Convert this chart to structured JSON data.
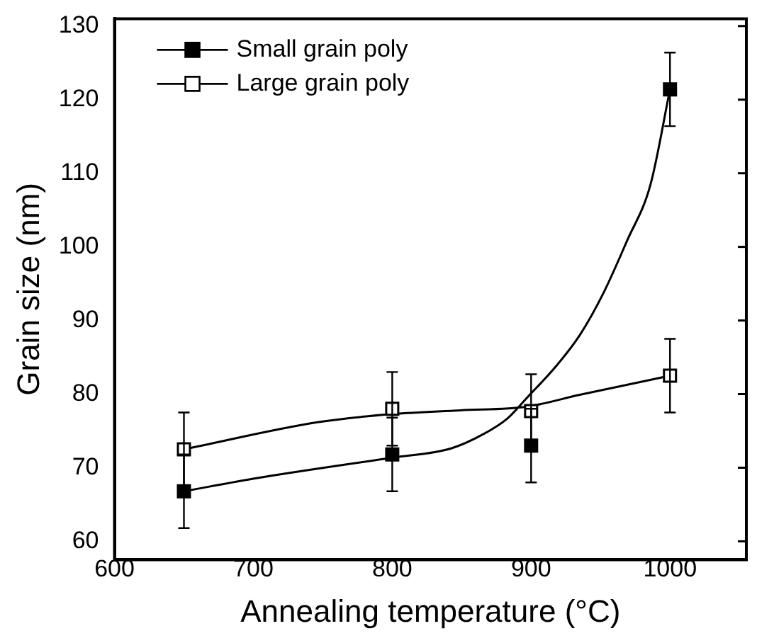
{
  "chart_data": {
    "type": "scatter",
    "xlabel": "Annealing temperature (°C)",
    "ylabel": "Grain size (nm)",
    "xlim": [
      600,
      1055
    ],
    "xticks": [
      600,
      700,
      800,
      900,
      1000
    ],
    "ylim": [
      57.5,
      131
    ],
    "yticks": [
      60,
      70,
      80,
      90,
      100,
      110,
      120,
      130
    ],
    "grid": false,
    "legend": "top left",
    "marker": "square",
    "series": [
      {
        "name": "Small grain poly",
        "color": "#000000",
        "x": [
          650,
          800,
          900,
          1000
        ],
        "values": [
          66.8,
          71.8,
          73.0,
          121.4
        ],
        "errors": [
          5,
          5,
          5,
          5
        ]
      },
      {
        "name": "Large grain poly",
        "color": "#ffffff",
        "x": [
          650,
          800,
          900,
          1000
        ],
        "values": [
          72.5,
          78.0,
          77.7,
          82.5
        ],
        "errors": [
          5,
          5,
          5,
          5
        ]
      },
      {
        "type": "line",
        "color": "#000000",
        "marker": "none",
        "x": [
          650,
          703,
          801,
          842,
          866,
          883,
          897,
          918,
          935,
          952,
          969,
          986,
          1000
        ],
        "values": [
          66.8,
          68.6,
          71.4,
          72.6,
          74.6,
          76.7,
          79.5,
          83.8,
          88,
          93.7,
          100.8,
          108.5,
          121.4
        ]
      },
      {
        "type": "line",
        "color": "#000000",
        "marker": "none",
        "x": [
          650,
          747,
          801,
          849,
          897,
          935,
          1000
        ],
        "values": [
          72.5,
          76.2,
          77.3,
          77.8,
          78.3,
          79.9,
          82.5
        ]
      }
    ]
  }
}
